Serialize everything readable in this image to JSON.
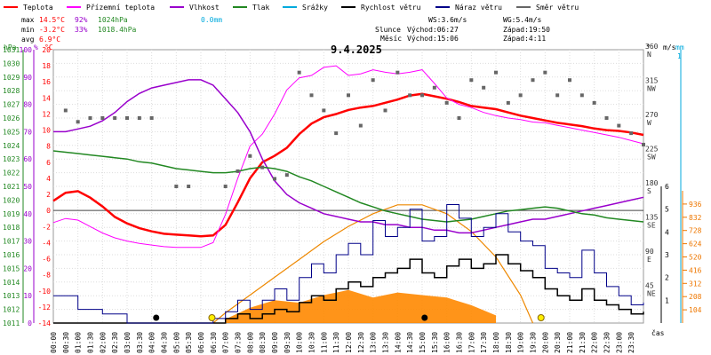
{
  "chart_data": {
    "type": "line",
    "date": "9.4.2025",
    "legend": [
      {
        "label": "Teplota",
        "color": "#ff0000"
      },
      {
        "label": "Přízemní teplota",
        "color": "#ff00ff"
      },
      {
        "label": "Vlhkost",
        "color": "#9900cc"
      },
      {
        "label": "Tlak",
        "color": "#228822"
      },
      {
        "label": "Srážky",
        "color": "#00aadd"
      },
      {
        "label": "Rychlost větru",
        "color": "#000000"
      },
      {
        "label": "Náraz větru",
        "color": "#000088"
      },
      {
        "label": "Směr větru",
        "color": "#666666"
      }
    ],
    "stats": {
      "max": {
        "label": "max",
        "temp": "14.5°C",
        "hum": "92%",
        "press": "1024hPa",
        "rain": "0.0mm"
      },
      "min": {
        "label": "min",
        "temp": "-3.2°C",
        "hum": "33%",
        "press": "1018.4hPa"
      },
      "avg": {
        "label": "avg",
        "temp": "6.9°C"
      }
    },
    "wind_info": {
      "ws": "WS:3.6m/s",
      "wg": "WG:5.4m/s"
    },
    "sun_info": {
      "label": "Slunce",
      "rise": "Východ:06:27",
      "set": "Západ:19:50"
    },
    "moon_info": {
      "label": "Měsíc",
      "rise": "Východ:15:06",
      "set": "Západ:4:11"
    },
    "axes": {
      "hpa": {
        "unit": "hPa",
        "ticks": [
          "1031",
          "1030",
          "1029",
          "1028",
          "1027",
          "1026",
          "1025",
          "1024",
          "1023",
          "1022",
          "1021",
          "1020",
          "1019",
          "1018",
          "1017",
          "1016",
          "1015",
          "1014",
          "1013",
          "1012",
          "1011"
        ],
        "range": [
          1011,
          1031
        ]
      },
      "pct": {
        "unit": "%",
        "ticks": [
          "100",
          "90",
          "80",
          "70",
          "60",
          "50",
          "40",
          "30",
          "20",
          "10",
          "0"
        ],
        "range": [
          0,
          100
        ]
      },
      "temp": {
        "unit": "°C",
        "ticks": [
          "20",
          "18",
          "16",
          "14",
          "12",
          "10",
          "8",
          "6",
          "4",
          "2",
          "0",
          "-2",
          "-4",
          "-6",
          "-8",
          "-10",
          "-12",
          "-14"
        ],
        "range": [
          -14,
          20
        ]
      },
      "dir": {
        "unit": "°",
        "labels": [
          {
            "deg": "360",
            "name": "N"
          },
          {
            "deg": "315",
            "name": "NW"
          },
          {
            "deg": "270",
            "name": "W"
          },
          {
            "deg": "225",
            "name": "SW"
          },
          {
            "deg": "180",
            "name": "S"
          },
          {
            "deg": "135",
            "name": "SE"
          },
          {
            "deg": "90",
            "name": "E"
          },
          {
            "deg": "45",
            "name": "NE"
          }
        ],
        "range": [
          0,
          360
        ]
      },
      "ms": {
        "unit": "m/s",
        "ticks": [
          "6",
          "5",
          "4",
          "3",
          "2",
          "1"
        ],
        "range": [
          0,
          6
        ]
      },
      "mm": {
        "unit": "mm",
        "top": "1"
      },
      "rad": {
        "ticks": [
          "936",
          "832",
          "728",
          "624",
          "520",
          "416",
          "312",
          "208",
          "104"
        ],
        "range": [
          0,
          1040
        ]
      },
      "time": {
        "unit": "čas",
        "ticks": [
          "00:00",
          "00:30",
          "01:00",
          "01:30",
          "02:00",
          "02:30",
          "03:00",
          "03:30",
          "04:00",
          "04:30",
          "05:00",
          "05:30",
          "06:00",
          "06:30",
          "07:00",
          "07:30",
          "08:00",
          "08:30",
          "09:00",
          "09:30",
          "10:00",
          "10:30",
          "11:00",
          "11:30",
          "12:00",
          "12:30",
          "13:00",
          "13:30",
          "14:00",
          "14:30",
          "15:00",
          "15:30",
          "16:00",
          "16:30",
          "17:00",
          "17:30",
          "18:00",
          "18:30",
          "19:00",
          "19:30",
          "20:00",
          "20:30",
          "21:00",
          "21:30",
          "22:00",
          "22:30",
          "23:00",
          "23:30"
        ]
      }
    },
    "series": [
      {
        "name": "Teplota",
        "unit": "°C",
        "x": [
          0,
          0.5,
          1,
          1.5,
          2,
          2.5,
          3,
          3.5,
          4,
          4.5,
          5,
          5.5,
          6,
          6.5,
          7,
          7.5,
          8,
          8.5,
          9,
          9.5,
          10,
          10.5,
          11,
          11.5,
          12,
          12.5,
          13,
          13.5,
          14,
          14.5,
          15,
          15.5,
          16,
          16.5,
          17,
          17.5,
          18,
          18.5,
          19,
          19.5,
          20,
          20.5,
          21,
          21.5,
          22,
          22.5,
          23,
          23.5,
          24
        ],
        "y": [
          1.2,
          2.2,
          2.4,
          1.6,
          0.5,
          -0.8,
          -1.6,
          -2.2,
          -2.6,
          -2.9,
          -3.0,
          -3.1,
          -3.2,
          -3.1,
          -1.8,
          1.0,
          4.0,
          6.0,
          6.8,
          7.8,
          9.5,
          10.8,
          11.6,
          12.0,
          12.5,
          12.8,
          13.0,
          13.4,
          13.8,
          14.3,
          14.5,
          14.2,
          13.9,
          13.5,
          13.0,
          12.8,
          12.6,
          12.2,
          11.8,
          11.5,
          11.2,
          10.9,
          10.7,
          10.5,
          10.2,
          10.0,
          9.9,
          9.7,
          9.4
        ]
      },
      {
        "name": "Přízemní teplota",
        "unit": "°C",
        "x": [
          0,
          0.5,
          1,
          1.5,
          2,
          2.5,
          3,
          3.5,
          4,
          4.5,
          5,
          5.5,
          6,
          6.5,
          7,
          7.5,
          8,
          8.5,
          9,
          9.5,
          10,
          10.5,
          11,
          11.5,
          12,
          12.5,
          13,
          13.5,
          14,
          14.5,
          15,
          15.5,
          16,
          16.5,
          17,
          17.5,
          18,
          18.5,
          19,
          19.5,
          20,
          20.5,
          21,
          21.5,
          22,
          22.5,
          23,
          23.5,
          24
        ],
        "y": [
          -1.5,
          -1.0,
          -1.2,
          -2.0,
          -2.8,
          -3.4,
          -3.8,
          -4.1,
          -4.3,
          -4.5,
          -4.6,
          -4.6,
          -4.6,
          -4.0,
          -0.5,
          4.0,
          8.0,
          9.5,
          12.0,
          15.0,
          16.5,
          16.8,
          17.8,
          18.0,
          16.8,
          17.0,
          17.5,
          17.2,
          17.0,
          17.2,
          17.5,
          15.8,
          14.0,
          13.2,
          12.8,
          12.2,
          11.8,
          11.5,
          11.3,
          11.0,
          10.9,
          10.6,
          10.3,
          10.0,
          9.7,
          9.4,
          9.1,
          8.7,
          8.3
        ]
      },
      {
        "name": "Vlhkost",
        "unit": "%",
        "x": [
          0,
          0.5,
          1,
          1.5,
          2,
          2.5,
          3,
          3.5,
          4,
          4.5,
          5,
          5.5,
          6,
          6.5,
          7,
          7.5,
          8,
          8.5,
          9,
          9.5,
          10,
          10.5,
          11,
          11.5,
          12,
          12.5,
          13,
          13.5,
          14,
          14.5,
          15,
          15.5,
          16,
          16.5,
          17,
          17.5,
          18,
          18.5,
          19,
          19.5,
          20,
          20.5,
          21,
          21.5,
          22,
          22.5,
          23,
          23.5,
          24
        ],
        "y": [
          70,
          70,
          71,
          72,
          74,
          77,
          81,
          84,
          86,
          87,
          88,
          89,
          89,
          87,
          82,
          77,
          70,
          60,
          52,
          47,
          44,
          42,
          40,
          39,
          38,
          37,
          37,
          36,
          36,
          35,
          35,
          34,
          34,
          33,
          33,
          34,
          35,
          36,
          37,
          38,
          38,
          39,
          40,
          41,
          42,
          43,
          44,
          45,
          46
        ]
      },
      {
        "name": "Tlak",
        "unit": "hPa",
        "x": [
          0,
          0.5,
          1,
          1.5,
          2,
          2.5,
          3,
          3.5,
          4,
          4.5,
          5,
          5.5,
          6,
          6.5,
          7,
          7.5,
          8,
          8.5,
          9,
          9.5,
          10,
          10.5,
          11,
          11.5,
          12,
          12.5,
          13,
          13.5,
          14,
          14.5,
          15,
          15.5,
          16,
          16.5,
          17,
          17.5,
          18,
          18.5,
          19,
          19.5,
          20,
          20.5,
          21,
          21.5,
          22,
          22.5,
          23,
          23.5,
          24
        ],
        "y": [
          1023.6,
          1023.5,
          1023.4,
          1023.3,
          1023.2,
          1023.1,
          1023.0,
          1022.8,
          1022.7,
          1022.5,
          1022.3,
          1022.2,
          1022.1,
          1022.0,
          1022.0,
          1022.1,
          1022.3,
          1022.4,
          1022.3,
          1022.1,
          1021.7,
          1021.4,
          1021.0,
          1020.6,
          1020.2,
          1019.8,
          1019.5,
          1019.2,
          1019.0,
          1018.8,
          1018.6,
          1018.5,
          1018.4,
          1018.5,
          1018.6,
          1018.8,
          1019.0,
          1019.2,
          1019.3,
          1019.4,
          1019.5,
          1019.4,
          1019.2,
          1019.0,
          1018.9,
          1018.7,
          1018.6,
          1018.5,
          1018.4
        ]
      },
      {
        "name": "Rychlost větru",
        "unit": "m/s",
        "x": [
          0,
          1,
          2,
          3,
          4,
          5,
          6,
          6.5,
          7,
          7.5,
          8,
          8.5,
          9,
          9.5,
          10,
          10.5,
          11,
          11.5,
          12,
          12.5,
          13,
          13.5,
          14,
          14.5,
          15,
          15.5,
          16,
          16.5,
          17,
          17.5,
          18,
          18.5,
          19,
          19.5,
          20,
          20.5,
          21,
          21.5,
          22,
          22.5,
          23,
          23.5,
          24
        ],
        "y": [
          0,
          0,
          0,
          0,
          0,
          0,
          0,
          0,
          0.2,
          0.4,
          0.2,
          0.4,
          0.6,
          0.5,
          0.9,
          1.2,
          1.0,
          1.5,
          1.8,
          1.6,
          2.0,
          2.2,
          2.4,
          2.8,
          2.2,
          2.0,
          2.5,
          2.8,
          2.4,
          2.6,
          3.0,
          2.6,
          2.3,
          2.0,
          1.5,
          1.2,
          1.0,
          1.5,
          1.0,
          0.8,
          0.6,
          0.4,
          0.5
        ]
      },
      {
        "name": "Náraz větru",
        "unit": "m/s",
        "x": [
          0,
          1,
          2,
          3,
          4,
          5,
          6,
          6.5,
          7,
          7.5,
          8,
          8.5,
          9,
          9.5,
          10,
          10.5,
          11,
          11.5,
          12,
          12.5,
          13,
          13.5,
          14,
          14.5,
          15,
          15.5,
          16,
          16.5,
          17,
          17.5,
          18,
          18.5,
          19,
          19.5,
          20,
          20.5,
          21,
          21.5,
          22,
          22.5,
          23,
          23.5,
          24
        ],
        "y": [
          1.2,
          0.6,
          0.4,
          0,
          0,
          0,
          0,
          0.2,
          0.5,
          1.0,
          0.6,
          1.0,
          1.5,
          1.0,
          2.0,
          2.6,
          2.2,
          3.0,
          3.5,
          3.0,
          4.5,
          3.8,
          4.2,
          5.0,
          3.6,
          3.8,
          5.2,
          4.6,
          3.8,
          4.2,
          4.8,
          4.0,
          3.6,
          3.4,
          2.4,
          2.2,
          2.0,
          3.2,
          2.2,
          1.6,
          1.2,
          0.8,
          0.9
        ]
      },
      {
        "name": "Směr větru",
        "unit": "°",
        "x": [
          0.5,
          1,
          1.5,
          2,
          2.5,
          3,
          3.5,
          4,
          5,
          5.5,
          7,
          7.5,
          8,
          8.5,
          9,
          9.5,
          10,
          10.5,
          11,
          11.5,
          12,
          12.5,
          13,
          13.5,
          14,
          14.5,
          15,
          15.5,
          16,
          16.5,
          17,
          17.5,
          18,
          18.5,
          19,
          19.5,
          20,
          20.5,
          21,
          21.5,
          22,
          22.5,
          23,
          23.5,
          24
        ],
        "y": [
          280,
          265,
          270,
          270,
          270,
          270,
          270,
          270,
          180,
          180,
          180,
          200,
          220,
          205,
          190,
          195,
          330,
          300,
          280,
          250,
          300,
          260,
          320,
          280,
          330,
          300,
          300,
          310,
          290,
          270,
          320,
          310,
          330,
          290,
          300,
          320,
          330,
          300,
          320,
          300,
          290,
          270,
          260,
          250,
          235
        ]
      }
    ],
    "solar_radiation": {
      "unit": "W/m²",
      "x": [
        6.5,
        7,
        8,
        9,
        10,
        11,
        12,
        13,
        14,
        15,
        16,
        17,
        18,
        19,
        19.5
      ],
      "y": [
        0,
        80,
        220,
        360,
        500,
        640,
        760,
        860,
        930,
        930,
        860,
        720,
        520,
        220,
        0
      ]
    },
    "solar_measured": {
      "unit": "W/m²",
      "x": [
        7,
        8,
        9,
        10,
        11,
        12,
        13,
        14,
        15,
        16,
        17,
        18
      ],
      "y": [
        30,
        120,
        180,
        160,
        220,
        260,
        200,
        240,
        220,
        200,
        140,
        60
      ]
    }
  }
}
